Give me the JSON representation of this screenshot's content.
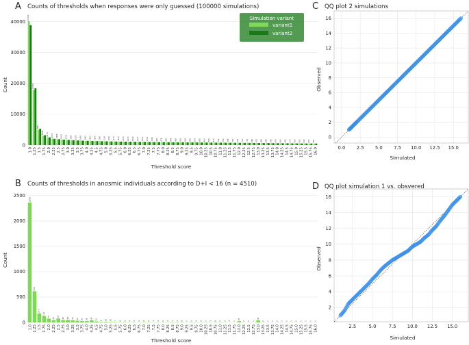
{
  "colors": {
    "variant1": "#7ed957",
    "variant2": "#1a7a1a",
    "qq": "#3b8fe6",
    "grid": "#e6e6e6"
  },
  "panels": {
    "A": {
      "letter": "A",
      "title": "Counts of thresholds when responses were only guessed (100000 simulations)",
      "xlabel": "Threshold score",
      "ylabel": "Count"
    },
    "B": {
      "letter": "B",
      "title": "Counts of thresholds in anosmic individuals according to D+I < 16 (n = 4510)",
      "xlabel": "Threshold score",
      "ylabel": "Count"
    },
    "C": {
      "letter": "C",
      "title": "QQ plot 2 simulations",
      "xlabel": "Simulated",
      "ylabel": "Observed"
    },
    "D": {
      "letter": "D",
      "title": "QQ plot simulation 1 vs. obsvered",
      "xlabel": "Simulated",
      "ylabel": "Observed"
    }
  },
  "legend": {
    "title": "Simulation variant",
    "items": [
      "variant1",
      "variant2"
    ]
  },
  "chart_data": [
    {
      "id": "A",
      "type": "bar",
      "categories": [
        "1.0",
        "1.25",
        "1.5",
        "1.75",
        "2.0",
        "2.25",
        "2.5",
        "2.75",
        "3.0",
        "3.25",
        "3.5",
        "3.75",
        "4.0",
        "4.25",
        "4.5",
        "4.75",
        "5.0",
        "5.25",
        "5.5",
        "5.75",
        "6.0",
        "6.25",
        "6.5",
        "6.75",
        "7.0",
        "7.25",
        "7.5",
        "7.75",
        "8.0",
        "8.25",
        "8.5",
        "8.75",
        "9.0",
        "9.25",
        "9.5",
        "9.75",
        "10.0",
        "10.25",
        "10.5",
        "10.75",
        "11.0",
        "11.25",
        "11.5",
        "11.75",
        "12.0",
        "12.25",
        "12.5",
        "12.75",
        "13.0",
        "13.25",
        "13.5",
        "13.75",
        "14.0",
        "14.25",
        "14.5",
        "14.75",
        "15.0",
        "15.25",
        "15.5",
        "15.75",
        "16.0"
      ],
      "series": [
        {
          "name": "variant1",
          "values": [
            40102,
            17924,
            4987,
            3045,
            2470,
            2104,
            1948,
            1810,
            1702,
            1600,
            1520,
            1450,
            1400,
            1350,
            1300,
            1260,
            1230,
            1200,
            1170,
            1150,
            1130,
            1110,
            1090,
            1070,
            1050,
            1030,
            1010,
            990,
            975,
            960,
            945,
            930,
            915,
            900,
            885,
            870,
            855,
            840,
            825,
            810,
            795,
            780,
            765,
            750,
            735,
            720,
            705,
            690,
            675,
            660,
            645,
            630,
            615,
            600,
            585,
            570,
            560,
            550,
            540,
            530,
            520
          ]
        },
        {
          "name": "variant2",
          "values": [
            38862,
            18430,
            5302,
            3200,
            2507,
            2050,
            1910,
            1780,
            1690,
            1590,
            1510,
            1440,
            1390,
            1340,
            1290,
            1250,
            1220,
            1190,
            1160,
            1140,
            1120,
            1100,
            1080,
            1060,
            1040,
            1020,
            1000,
            980,
            965,
            950,
            935,
            920,
            905,
            890,
            875,
            860,
            845,
            830,
            815,
            800,
            785,
            770,
            755,
            740,
            725,
            710,
            695,
            680,
            665,
            650,
            635,
            620,
            605,
            590,
            575,
            560,
            550,
            540,
            530,
            520,
            510
          ]
        }
      ],
      "value_labels": [
        "40102",
        "17924",
        "4987",
        "3045",
        "2470",
        "2104",
        "1948",
        "1810",
        "1702",
        "1600",
        "1520",
        "1450",
        "1400",
        "1350",
        "1300",
        "1260",
        "1230",
        "1200",
        "1170",
        "1150",
        "1130",
        "1110",
        "1090",
        "1070",
        "1050",
        "1030",
        "1010",
        "990",
        "975",
        "960",
        "945",
        "930",
        "915",
        "900",
        "885",
        "870",
        "855",
        "840",
        "825",
        "810",
        "795",
        "780",
        "765",
        "750",
        "735",
        "720",
        "705",
        "690",
        "675",
        "660",
        "645",
        "630",
        "615",
        "600",
        "585",
        "570",
        "560",
        "550",
        "540",
        "530",
        "520"
      ],
      "yticks": [
        "0",
        "10000",
        "20000",
        "30000",
        "40000"
      ],
      "ylim": [
        0,
        43000
      ]
    },
    {
      "id": "B",
      "type": "bar",
      "categories": [
        "1.0",
        "1.25",
        "1.5",
        "1.75",
        "2.0",
        "2.25",
        "2.5",
        "2.75",
        "3.0",
        "3.25",
        "3.5",
        "3.75",
        "4.0",
        "4.25",
        "4.5",
        "4.75",
        "5.0",
        "5.25",
        "5.5",
        "5.75",
        "6.0",
        "6.25",
        "6.5",
        "6.75",
        "7.0",
        "7.25",
        "7.5",
        "7.75",
        "8.0",
        "8.25",
        "8.5",
        "8.75",
        "9.0",
        "9.25",
        "9.5",
        "9.75",
        "10.0",
        "10.25",
        "10.5",
        "10.75",
        "11.0",
        "11.25",
        "11.5",
        "11.75",
        "12.0",
        "12.25",
        "12.5",
        "12.75",
        "13.0",
        "13.25",
        "13.5",
        "13.75",
        "14.0",
        "14.25",
        "14.5",
        "14.75",
        "15.0",
        "15.25",
        "15.5",
        "15.75",
        "16.0"
      ],
      "values": [
        2363,
        616,
        177,
        122,
        75,
        45,
        78,
        46,
        53,
        43,
        35,
        30,
        26,
        47,
        20,
        9,
        12,
        10,
        7,
        6,
        5,
        4,
        4,
        3,
        6,
        5,
        3,
        4,
        5,
        3,
        7,
        4,
        6,
        2,
        5,
        3,
        4,
        2,
        3,
        6,
        5,
        2,
        3,
        1,
        25,
        2,
        2,
        1,
        40,
        2,
        1,
        1,
        2,
        1,
        2,
        1,
        2,
        1,
        1,
        1,
        1
      ],
      "yticks": [
        "0",
        "500",
        "1000",
        "1500",
        "2000",
        "2500"
      ],
      "ylim": [
        0,
        2550
      ]
    },
    {
      "id": "C",
      "type": "scatter",
      "xticks": [
        "0.0",
        "2.5",
        "5.0",
        "7.5",
        "10.0",
        "12.5",
        "15.0"
      ],
      "yticks": [
        "0",
        "2",
        "4",
        "6",
        "8",
        "10",
        "12",
        "14",
        "16"
      ],
      "xlim": [
        -1.0,
        17.0
      ],
      "ylim": [
        -0.8,
        17.0
      ],
      "reference_line": "y = x",
      "points": [
        [
          1.0,
          1.0
        ],
        [
          1.25,
          1.25
        ],
        [
          1.5,
          1.5
        ],
        [
          1.75,
          1.75
        ],
        [
          2.0,
          2.0
        ],
        [
          2.5,
          2.5
        ],
        [
          3.0,
          3.0
        ],
        [
          3.5,
          3.5
        ],
        [
          4.0,
          4.0
        ],
        [
          4.5,
          4.5
        ],
        [
          5.0,
          5.0
        ],
        [
          5.5,
          5.5
        ],
        [
          6.0,
          6.0
        ],
        [
          6.5,
          6.5
        ],
        [
          7.0,
          7.0
        ],
        [
          7.5,
          7.5
        ],
        [
          8.0,
          8.0
        ],
        [
          8.5,
          8.5
        ],
        [
          9.0,
          9.0
        ],
        [
          9.5,
          9.5
        ],
        [
          10.0,
          10.0
        ],
        [
          10.5,
          10.5
        ],
        [
          11.0,
          11.0
        ],
        [
          11.5,
          11.5
        ],
        [
          12.0,
          12.0
        ],
        [
          12.5,
          12.5
        ],
        [
          13.0,
          13.0
        ],
        [
          13.5,
          13.5
        ],
        [
          14.0,
          14.0
        ],
        [
          14.5,
          14.5
        ],
        [
          15.0,
          15.0
        ],
        [
          15.5,
          15.5
        ],
        [
          16.0,
          16.0
        ]
      ]
    },
    {
      "id": "D",
      "type": "scatter",
      "xticks": [
        "2.5",
        "5.0",
        "7.5",
        "10.0",
        "12.5",
        "15.0"
      ],
      "yticks": [
        "2",
        "4",
        "6",
        "8",
        "10",
        "12",
        "14",
        "16"
      ],
      "xlim": [
        0.2,
        17.0
      ],
      "ylim": [
        0.2,
        17.0
      ],
      "reference_line": "y = x",
      "points": [
        [
          1.0,
          1.0
        ],
        [
          1.5,
          1.6
        ],
        [
          2.0,
          2.5
        ],
        [
          2.5,
          3.0
        ],
        [
          3.0,
          3.5
        ],
        [
          3.5,
          4.0
        ],
        [
          4.0,
          4.5
        ],
        [
          4.5,
          5.0
        ],
        [
          5.0,
          5.6
        ],
        [
          5.5,
          6.1
        ],
        [
          6.0,
          6.7
        ],
        [
          6.5,
          7.2
        ],
        [
          7.0,
          7.6
        ],
        [
          7.5,
          8.0
        ],
        [
          8.0,
          8.3
        ],
        [
          8.5,
          8.6
        ],
        [
          9.0,
          8.9
        ],
        [
          9.5,
          9.2
        ],
        [
          10.0,
          9.7
        ],
        [
          10.5,
          10.0
        ],
        [
          11.0,
          10.3
        ],
        [
          11.5,
          10.8
        ],
        [
          12.0,
          11.2
        ],
        [
          12.5,
          11.8
        ],
        [
          13.0,
          12.3
        ],
        [
          13.5,
          13.0
        ],
        [
          14.0,
          13.6
        ],
        [
          14.5,
          14.3
        ],
        [
          15.0,
          15.0
        ],
        [
          15.5,
          15.5
        ],
        [
          16.0,
          16.0
        ]
      ]
    }
  ]
}
